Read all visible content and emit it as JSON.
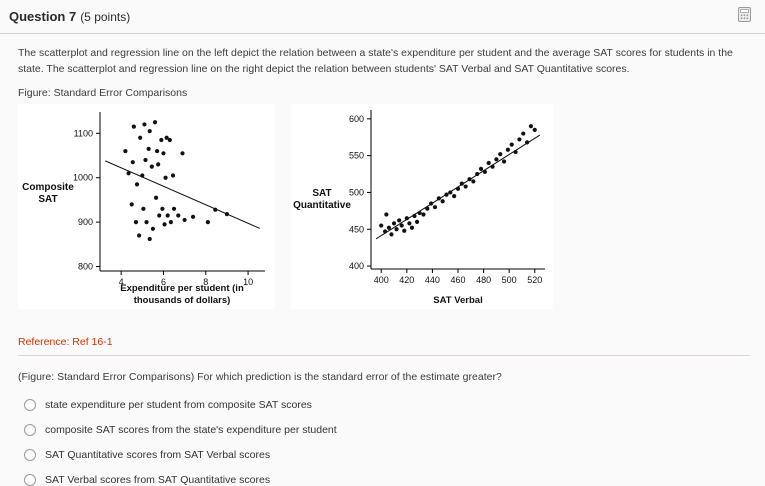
{
  "header": {
    "title": "Question 7",
    "points": "(5 points)"
  },
  "question": {
    "intro": "The scatterplot and regression line on the left depict the relation between a state's expenditure per student and the average SAT scores for students in the state. The scatterplot and regression line on the right depict the relation between students' SAT Verbal and SAT Quantitative scores.",
    "figure_label": "Figure: Standard Error Comparisons",
    "reference": "Reference: Ref 16-1",
    "prompt": "(Figure: Standard Error Comparisons) For which prediction is the standard error of the estimate greater?",
    "options": [
      {
        "label": "state expenditure per student from composite SAT scores"
      },
      {
        "label": "composite SAT scores from the state's expenditure per student"
      },
      {
        "label": "SAT Quantitative scores from SAT Verbal scores"
      },
      {
        "label": "SAT Verbal scores from SAT Quantitative scores"
      }
    ]
  },
  "colors": {
    "reference_red": "#cc3300",
    "point_black": "#111111"
  },
  "chart_data": [
    {
      "type": "scatter",
      "title": "",
      "ylabel": "Composite SAT",
      "xlabel": "Expenditure per student (in thousands of dollars)",
      "xlim": [
        3,
        10.8
      ],
      "ylim": [
        790,
        1148
      ],
      "xticks": [
        4,
        6,
        8,
        10
      ],
      "yticks": [
        800,
        900,
        1000,
        1100
      ],
      "legend": "none",
      "grid": false,
      "points": [
        [
          4.6,
          1115
        ],
        [
          4.9,
          1090
        ],
        [
          5.1,
          1120
        ],
        [
          5.35,
          1105
        ],
        [
          5.6,
          1125
        ],
        [
          5.9,
          1085
        ],
        [
          6.15,
          1090
        ],
        [
          5.3,
          1065
        ],
        [
          5.7,
          1060
        ],
        [
          6.0,
          1055
        ],
        [
          6.3,
          1085
        ],
        [
          6.9,
          1055
        ],
        [
          4.2,
          1060
        ],
        [
          4.35,
          1010
        ],
        [
          4.55,
          1035
        ],
        [
          4.75,
          985
        ],
        [
          5.0,
          1005
        ],
        [
          5.15,
          1040
        ],
        [
          5.45,
          1025
        ],
        [
          5.75,
          1030
        ],
        [
          6.1,
          1000
        ],
        [
          6.45,
          1005
        ],
        [
          4.5,
          940
        ],
        [
          4.7,
          900
        ],
        [
          4.85,
          870
        ],
        [
          5.05,
          930
        ],
        [
          5.2,
          900
        ],
        [
          5.35,
          862
        ],
        [
          5.5,
          885
        ],
        [
          5.65,
          955
        ],
        [
          5.8,
          915
        ],
        [
          5.95,
          930
        ],
        [
          6.05,
          895
        ],
        [
          6.2,
          915
        ],
        [
          6.35,
          900
        ],
        [
          6.5,
          930
        ],
        [
          6.7,
          915
        ],
        [
          7.0,
          905
        ],
        [
          7.4,
          912
        ],
        [
          8.1,
          900
        ],
        [
          8.45,
          928
        ],
        [
          9.0,
          918
        ]
      ],
      "regression_line": {
        "x": [
          3.25,
          10.55
        ],
        "y": [
          1038,
          886
        ]
      }
    },
    {
      "type": "scatter",
      "title": "",
      "ylabel": "SAT Quantitative",
      "xlabel": "SAT Verbal",
      "xlim": [
        392,
        528
      ],
      "ylim": [
        396,
        612
      ],
      "xticks": [
        400,
        420,
        440,
        460,
        480,
        500,
        520
      ],
      "yticks": [
        400,
        450,
        500,
        550,
        600
      ],
      "legend": "none",
      "grid": false,
      "points": [
        [
          400,
          455
        ],
        [
          403,
          447
        ],
        [
          406,
          452
        ],
        [
          408,
          443
        ],
        [
          410,
          458
        ],
        [
          412,
          450
        ],
        [
          414,
          462
        ],
        [
          416,
          455
        ],
        [
          418,
          448
        ],
        [
          420,
          465
        ],
        [
          422,
          458
        ],
        [
          424,
          452
        ],
        [
          426,
          468
        ],
        [
          428,
          460
        ],
        [
          430,
          472
        ],
        [
          404,
          470
        ],
        [
          433,
          470
        ],
        [
          436,
          478
        ],
        [
          439,
          485
        ],
        [
          442,
          480
        ],
        [
          445,
          492
        ],
        [
          448,
          488
        ],
        [
          451,
          497
        ],
        [
          454,
          500
        ],
        [
          457,
          495
        ],
        [
          460,
          505
        ],
        [
          463,
          512
        ],
        [
          466,
          508
        ],
        [
          469,
          518
        ],
        [
          472,
          515
        ],
        [
          475,
          525
        ],
        [
          478,
          532
        ],
        [
          481,
          528
        ],
        [
          484,
          540
        ],
        [
          487,
          535
        ],
        [
          490,
          545
        ],
        [
          493,
          552
        ],
        [
          496,
          542
        ],
        [
          499,
          558
        ],
        [
          502,
          565
        ],
        [
          505,
          555
        ],
        [
          508,
          572
        ],
        [
          511,
          580
        ],
        [
          514,
          568
        ],
        [
          517,
          590
        ],
        [
          520,
          585
        ]
      ],
      "regression_line": {
        "x": [
          396,
          524
        ],
        "y": [
          437,
          578
        ]
      }
    }
  ]
}
